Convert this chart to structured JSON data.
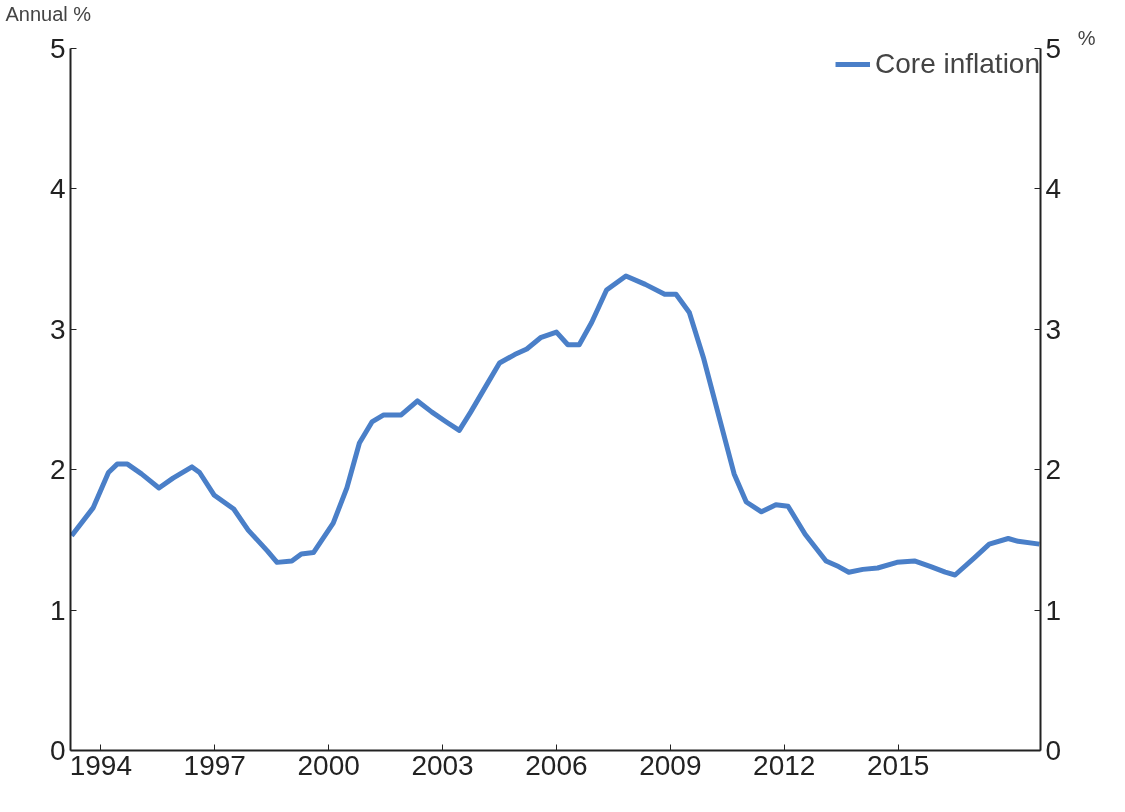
{
  "chart_data": {
    "type": "line",
    "ylabel": "Annual %",
    "y2label": "%",
    "x": [
      1993.23,
      1993.8,
      1994.2,
      1994.43,
      1994.7,
      1995.07,
      1995.53,
      1995.9,
      1996.4,
      1996.6,
      1996.98,
      1997.5,
      1997.88,
      1998.39,
      1998.64,
      1999.03,
      1999.28,
      1999.6,
      2000.12,
      2000.48,
      2000.81,
      2001.14,
      2001.45,
      2001.91,
      2002.34,
      2002.72,
      2003.1,
      2003.44,
      2003.74,
      2004.13,
      2004.5,
      2004.9,
      2005.22,
      2005.58,
      2006.0,
      2006.3,
      2006.6,
      2006.93,
      2007.32,
      2007.83,
      2008.34,
      2008.85,
      2009.15,
      2009.5,
      2009.87,
      2010.25,
      2010.68,
      2011.0,
      2011.4,
      2011.78,
      2012.1,
      2012.55,
      2013.1,
      2013.43,
      2013.7,
      2014.07,
      2014.46,
      2014.97,
      2015.43,
      2015.86,
      2016.24,
      2016.5,
      2017.0,
      2017.4,
      2017.9,
      2018.16,
      2018.72
    ],
    "series": [
      {
        "name": "Core inflation",
        "color": "#4a7fc8",
        "values": [
          1.53,
          1.73,
          1.98,
          2.04,
          2.04,
          1.97,
          1.87,
          1.94,
          2.02,
          1.98,
          1.82,
          1.72,
          1.57,
          1.42,
          1.34,
          1.35,
          1.4,
          1.41,
          1.62,
          1.87,
          2.19,
          2.34,
          2.39,
          2.39,
          2.49,
          2.41,
          2.34,
          2.28,
          2.41,
          2.59,
          2.76,
          2.82,
          2.86,
          2.94,
          2.98,
          2.89,
          2.89,
          3.05,
          3.28,
          3.38,
          3.32,
          3.25,
          3.25,
          3.12,
          2.8,
          2.41,
          1.97,
          1.77,
          1.7,
          1.75,
          1.74,
          1.54,
          1.35,
          1.31,
          1.27,
          1.29,
          1.3,
          1.34,
          1.35,
          1.31,
          1.27,
          1.25,
          1.37,
          1.47,
          1.51,
          1.49,
          1.47
        ]
      }
    ],
    "xlim": [
      1993.2,
      2018.75
    ],
    "xticks": [
      1994,
      1997,
      2000,
      2003,
      2006,
      2009,
      2012,
      2015
    ],
    "ylim": [
      0,
      5
    ],
    "yticks": [
      0,
      1,
      2,
      3,
      4,
      5
    ],
    "y2lim": [
      0,
      5
    ],
    "y2ticks": [
      0,
      1,
      2,
      3,
      4,
      5
    ],
    "grid": false,
    "legend": "top right",
    "line_style": "solid",
    "marker": "none"
  }
}
